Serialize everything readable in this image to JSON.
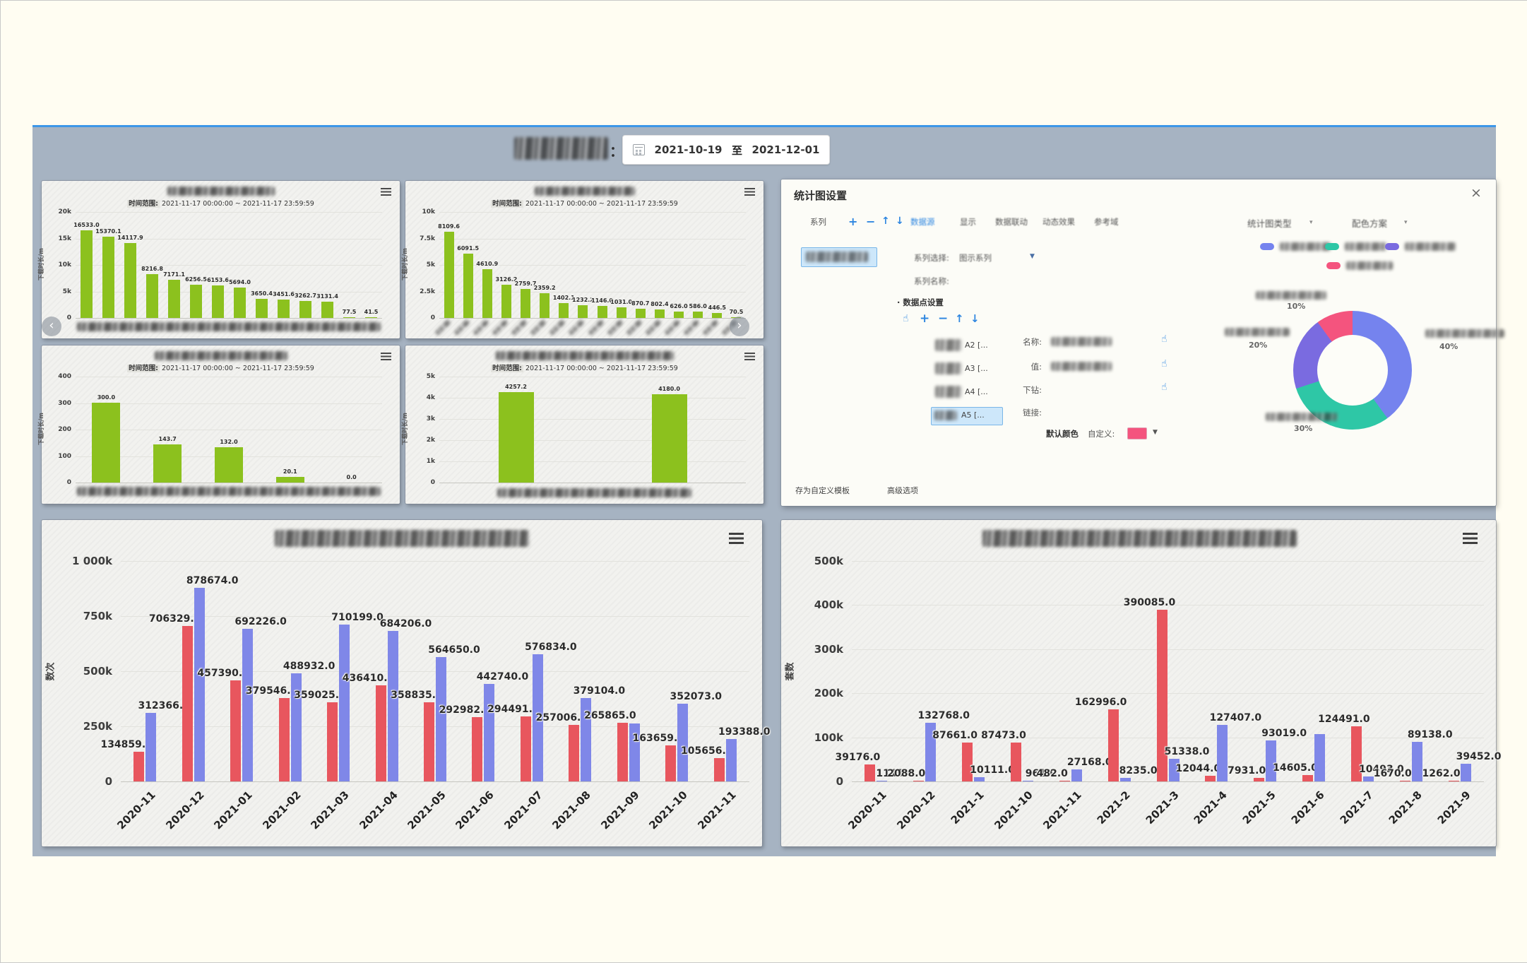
{
  "page": {
    "header": {
      "colon": "：",
      "date_from": "2021-10-19",
      "to_label": "至",
      "date_to": "2021-12-01"
    },
    "carousel": {
      "prev": "‹",
      "next": "›"
    }
  },
  "settings_panel": {
    "title": "统计图设置",
    "close": "×",
    "series_label": "系列",
    "icons": {
      "add": "+",
      "remove": "−",
      "up": "↑",
      "down": "↓",
      "hand": "☝",
      "caret": "▼",
      "small_caret": "▾",
      "dot": "·"
    },
    "tabs": [
      {
        "label": "数据源",
        "active": true
      },
      {
        "label": "显示",
        "active": false
      },
      {
        "label": "数据联动",
        "active": false
      },
      {
        "label": "动态效果",
        "active": false
      },
      {
        "label": "参考域",
        "active": false
      }
    ],
    "series_select_label": "系列选择:",
    "series_select_value": "图示系列",
    "series_name_label": "系列名称:",
    "datapoint_section_label": "数据点设置",
    "datapoint_items": [
      {
        "label": "A2 [...",
        "selected": false
      },
      {
        "label": "A3 [...",
        "selected": false
      },
      {
        "label": "A4 [...",
        "selected": false
      },
      {
        "label": "A5 [...",
        "selected": true
      }
    ],
    "fields": [
      {
        "label": "名称:",
        "value_redacted": true,
        "has_hand": true
      },
      {
        "label": "值:",
        "value_redacted": true,
        "has_hand": true
      },
      {
        "label": "下钻:",
        "value_redacted": false,
        "has_hand": true
      },
      {
        "label": "链接:",
        "value_redacted": false,
        "has_hand": false
      }
    ],
    "default_color_label": "默认颜色",
    "custom_label": "自定义:",
    "custom_color": "#F4547E",
    "chart_type_label": "统计图类型",
    "color_scheme_label": "配色方案",
    "legend_colors": [
      "#7583EE",
      "#2EC7A6",
      "#7A6BE0",
      "#F4547E"
    ],
    "footer_links": [
      "存为自定义模板",
      "高级选项"
    ]
  },
  "chart_data": [
    {
      "id": "mini1",
      "type": "bar",
      "title_redacted": true,
      "subtitle_label": "时间范围:",
      "subtitle": "2021-11-17 00:00:00 ~ 2021-11-17 23:59:59",
      "ylabel": "下载时长/m",
      "yticks": [
        "20k",
        "15k",
        "10k",
        "5k",
        "0"
      ],
      "ymax": 20000,
      "bar_color": "#8CC11E",
      "categories_redacted": true,
      "values": [
        16533.0,
        15370.1,
        14117.9,
        8216.8,
        7171.1,
        6256.5,
        6153.6,
        5694.0,
        3650.4,
        3451.6,
        3262.7,
        3131.4,
        77.5,
        41.5
      ]
    },
    {
      "id": "mini2",
      "type": "bar",
      "title_redacted": true,
      "subtitle_label": "时间范围:",
      "subtitle": "2021-11-17 00:00:00 ~ 2021-11-17 23:59:59",
      "ylabel": "下载时长/m",
      "yticks": [
        "10k",
        "7.5k",
        "5k",
        "2.5k",
        "0"
      ],
      "ymax": 10000,
      "bar_color": "#8CC11E",
      "categories_redacted": true,
      "values": [
        8109.6,
        6091.5,
        4610.9,
        3126.2,
        2759.7,
        2359.2,
        1402.1,
        1232.2,
        1146.0,
        1031.0,
        870.7,
        802.4,
        626.0,
        586.0,
        446.5,
        70.5
      ]
    },
    {
      "id": "mini3",
      "type": "bar",
      "title_redacted": true,
      "subtitle_label": "时间范围:",
      "subtitle": "2021-11-17 00:00:00 ~ 2021-11-17 23:59:59",
      "ylabel": "下载时长/m",
      "yticks": [
        "400",
        "300",
        "200",
        "100",
        "0"
      ],
      "ymax": 400,
      "bar_color": "#8CC11E",
      "categories_redacted": true,
      "values": [
        300.0,
        143.7,
        132.0,
        20.1,
        0.0
      ]
    },
    {
      "id": "mini4",
      "type": "bar",
      "title_redacted": true,
      "subtitle_label": "时间范围:",
      "subtitle": "2021-11-17 00:00:00 ~ 2021-11-17 23:59:59",
      "ylabel": "下载时长/m",
      "yticks": [
        "5k",
        "4k",
        "3k",
        "2k",
        "1k",
        "0"
      ],
      "ymax": 5000,
      "bar_color": "#8CC11E",
      "categories_redacted": true,
      "values": [
        4257.2,
        4180.0
      ]
    },
    {
      "id": "bigLeft",
      "type": "grouped-bar",
      "title_redacted": true,
      "ylabel": "数次",
      "yticks": [
        "1 000k",
        "750k",
        "500k",
        "250k",
        "0"
      ],
      "ymax": 1000000,
      "categories": [
        "2020-11",
        "2020-12",
        "2021-01",
        "2021-02",
        "2021-03",
        "2021-04",
        "2021-05",
        "2021-06",
        "2021-07",
        "2021-08",
        "2021-09",
        "2021-10",
        "2021-11"
      ],
      "series": [
        {
          "name": "series-red",
          "color": "#E8565E",
          "values": [
            134859,
            706329,
            457390,
            379546,
            359025,
            436410,
            358835,
            292982,
            294491,
            257006,
            265865,
            163659,
            105656
          ],
          "labels": [
            "134859.0",
            "706329.0",
            "457390.0",
            "379546.0",
            "359025.0",
            "436410.0",
            "358835.0",
            "292982.0",
            "294491.0",
            "257006.0",
            "265865.0",
            "163659.0",
            "105656.0"
          ]
        },
        {
          "name": "series-blue",
          "color": "#7F87E8",
          "values": [
            312366,
            878674,
            692226,
            488932,
            710199,
            684206,
            564650,
            442740,
            576834,
            379104,
            262000,
            352073,
            193388
          ],
          "labels": [
            "312366.0",
            "878674.0",
            "692226.0",
            "488932.0",
            "710199.0",
            "684206.0",
            "564650.0",
            "442740.0",
            "576834.0",
            "379104.0",
            null,
            "352073.0",
            "193388.0"
          ]
        }
      ]
    },
    {
      "id": "bigRight",
      "type": "grouped-bar",
      "title_redacted": true,
      "ylabel": "套数",
      "yticks": [
        "500k",
        "400k",
        "300k",
        "200k",
        "100k",
        "0"
      ],
      "ymax": 500000,
      "categories": [
        "2020-11",
        "2020-12",
        "2021-1",
        "2021-10",
        "2021-11",
        "2021-2",
        "2021-3",
        "2021-4",
        "2021-5",
        "2021-6",
        "2021-7",
        "2021-8",
        "2021-9"
      ],
      "series": [
        {
          "name": "series-red",
          "color": "#E8565E",
          "values": [
            39176,
            2088,
            87661,
            87473,
            482,
            162996,
            390085,
            12044,
            7931,
            14605,
            124491,
            1670,
            1262
          ],
          "labels": [
            "39176.0",
            "2088.0",
            "87661.0",
            "87473.0",
            "482.0",
            "162996.0",
            "390085.0",
            "12044.0",
            "7931.0",
            "14605.0",
            "124491.0",
            "1670.0",
            "1262.0"
          ]
        },
        {
          "name": "series-blue",
          "color": "#7F87E8",
          "values": [
            1145,
            132768,
            10111,
            961,
            27168,
            8235,
            51338,
            127407,
            93019,
            108000,
            10493,
            89138,
            39452
          ],
          "labels": [
            "1145.0",
            "132768.0",
            "10111.0",
            "961.0",
            "27168.0",
            "8235.0",
            "51338.0",
            "127407.0",
            "93019.0",
            null,
            "10493.0",
            "89138.0",
            "39452.0"
          ]
        }
      ]
    },
    {
      "id": "donut",
      "type": "pie",
      "labels_redacted": true,
      "slices": [
        {
          "pct_label": "40%",
          "value": 40,
          "color": "#7583EE"
        },
        {
          "pct_label": "30%",
          "value": 30,
          "color": "#2EC7A6"
        },
        {
          "pct_label": "20%",
          "value": 20,
          "color": "#7A6BE0"
        },
        {
          "pct_label": "10%",
          "value": 10,
          "color": "#F4547E"
        }
      ]
    }
  ]
}
